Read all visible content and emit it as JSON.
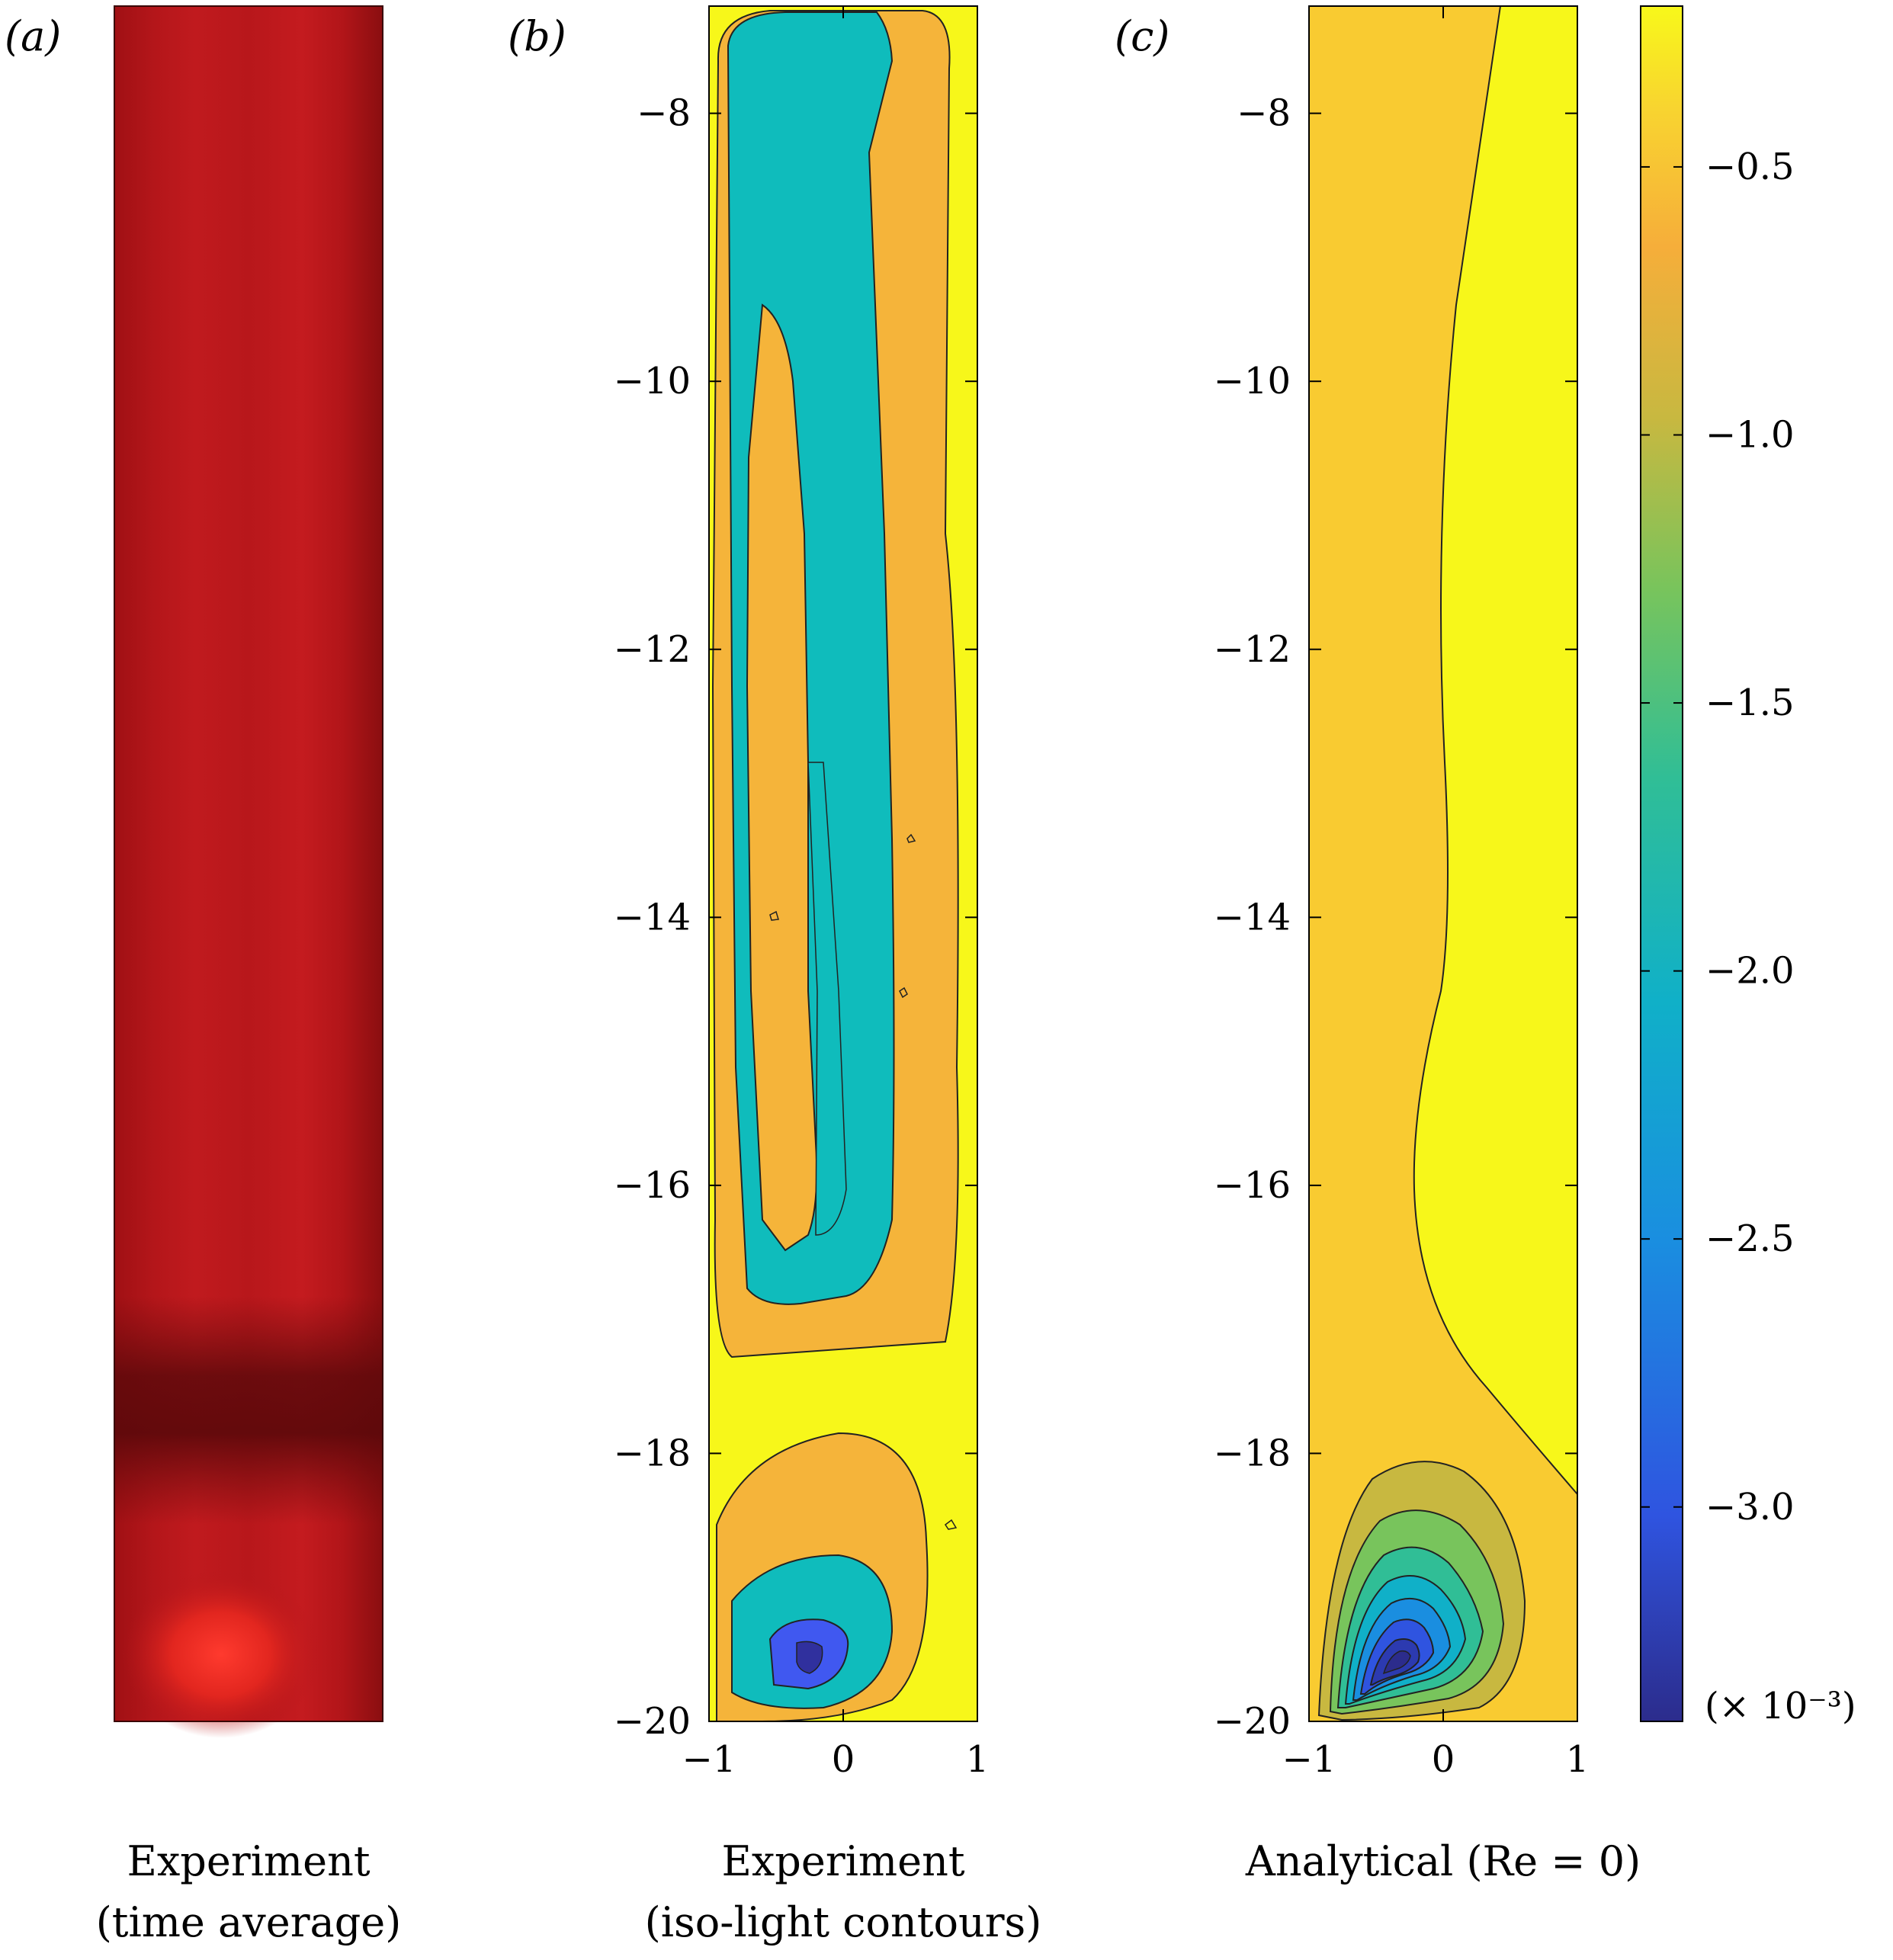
{
  "figure": {
    "panels": [
      {
        "id": "a",
        "label": "(a)",
        "caption_line1": "Experiment",
        "caption_line2": "(time average)"
      },
      {
        "id": "b",
        "label": "(b)",
        "caption_line1": "Experiment",
        "caption_line2": "(iso-light contours)"
      },
      {
        "id": "c",
        "label": "(c)",
        "caption_line1": "Analytical (Re = 0)",
        "caption_line2": ""
      }
    ],
    "colorbar": {
      "ticks": [
        "−0.5",
        "−1.0",
        "−1.5",
        "−2.0",
        "−2.5",
        "−3.0"
      ],
      "multiplier": "(× 10⁻³)"
    }
  },
  "chart_data": [
    {
      "type": "heatmap",
      "panel": "a",
      "title": "",
      "description_colors": {
        "base": "#b41418",
        "dark_band": "#6e0c0e",
        "bright_spot": "#ff3b30"
      }
    },
    {
      "type": "heatmap",
      "panel": "b",
      "xlim": [
        -1,
        1
      ],
      "ylim": [
        -20,
        -7.2
      ],
      "x_ticks": [
        "−1",
        "0",
        "1"
      ],
      "y_ticks": [
        "−8",
        "−10",
        "−12",
        "−14",
        "−16",
        "−18",
        "−20"
      ],
      "x_tick_values": [
        -1,
        0,
        1
      ],
      "y_tick_values": [
        -8,
        -10,
        -12,
        -14,
        -16,
        -18,
        -20
      ],
      "colors": {
        "yellow": "#f7f71a",
        "orange": "#f5b43a",
        "teal": "#0fbcbc",
        "blue": "#4058f0",
        "dark_blue": "#30309e"
      }
    },
    {
      "type": "heatmap",
      "panel": "c",
      "xlim": [
        -1,
        1
      ],
      "ylim": [
        -20,
        -7.2
      ],
      "x_ticks": [
        "−1",
        "0",
        "1"
      ],
      "y_ticks": [
        "−8",
        "−10",
        "−12",
        "−14",
        "−16",
        "−18",
        "−20"
      ],
      "x_tick_values": [
        -1,
        0,
        1
      ],
      "y_tick_values": [
        -8,
        -10,
        -12,
        -14,
        -16,
        -18,
        -20
      ],
      "colorbar_range": [
        -3.4,
        -0.2
      ],
      "vortex_center": {
        "x": -0.35,
        "y": -19.5
      },
      "colors": {
        "yellow": "#f7f71a",
        "orange": "#f9cb31"
      }
    }
  ]
}
